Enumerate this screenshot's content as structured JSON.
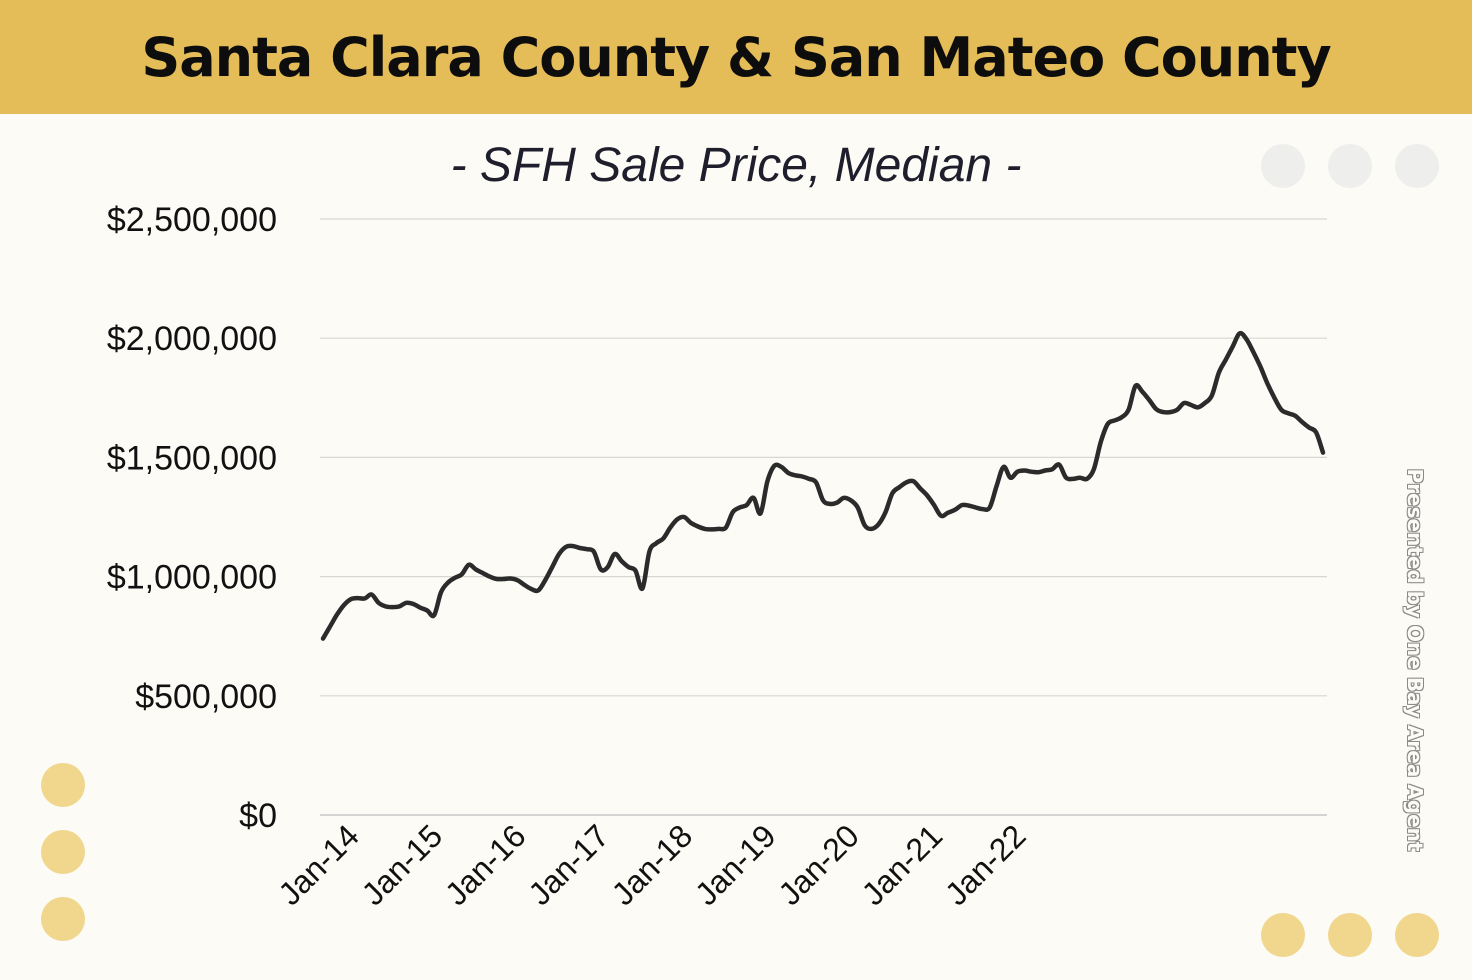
{
  "header": {
    "title": "Santa Clara County & San Mateo County"
  },
  "watermark": "Presented by One Bay Area Agent",
  "colors": {
    "header_bg": "#e4bc58",
    "line": "#2b2b2b",
    "gold_dot": "#f1d68e",
    "gray_dot": "#eeeeec"
  },
  "chart_data": {
    "type": "line",
    "title": "- SFH Sale Price, Median -",
    "xlabel": "",
    "ylabel": "",
    "ylim": [
      0,
      2500000
    ],
    "yticks": [
      0,
      500000,
      1000000,
      1500000,
      2000000,
      2500000
    ],
    "ytick_labels": [
      "$0",
      "$500,000",
      "$1,000,000",
      "$1,500,000",
      "$2,000,000",
      "$2,500,000"
    ],
    "xtick_labels": [
      "Jan-14",
      "Jan-15",
      "Jan-16",
      "Jan-17",
      "Jan-18",
      "Jan-19",
      "Jan-20",
      "Jan-21",
      "Jan-22"
    ],
    "grid": true,
    "series": [
      {
        "name": "SFH Sale Price, Median",
        "values": [
          740000,
          790000,
          840000,
          880000,
          905000,
          910000,
          908000,
          925000,
          890000,
          875000,
          872000,
          875000,
          890000,
          885000,
          870000,
          858000,
          838000,
          935000,
          975000,
          995000,
          1010000,
          1050000,
          1030000,
          1015000,
          1000000,
          990000,
          990000,
          992000,
          985000,
          965000,
          948000,
          942000,
          985000,
          1040000,
          1095000,
          1125000,
          1128000,
          1120000,
          1115000,
          1105000,
          1030000,
          1040000,
          1095000,
          1065000,
          1040000,
          1025000,
          950000,
          1105000,
          1140000,
          1160000,
          1205000,
          1240000,
          1250000,
          1225000,
          1210000,
          1200000,
          1198000,
          1200000,
          1205000,
          1270000,
          1290000,
          1300000,
          1330000,
          1265000,
          1400000,
          1465000,
          1460000,
          1435000,
          1425000,
          1420000,
          1410000,
          1395000,
          1320000,
          1305000,
          1310000,
          1330000,
          1320000,
          1290000,
          1215000,
          1200000,
          1220000,
          1270000,
          1350000,
          1375000,
          1395000,
          1400000,
          1370000,
          1340000,
          1300000,
          1255000,
          1268000,
          1280000,
          1300000,
          1298000,
          1290000,
          1283000,
          1290000,
          1380000,
          1460000,
          1415000,
          1440000,
          1445000,
          1440000,
          1438000,
          1445000,
          1450000,
          1470000,
          1415000,
          1410000,
          1415000,
          1410000,
          1450000,
          1565000,
          1640000,
          1655000,
          1668000,
          1700000,
          1800000,
          1775000,
          1740000,
          1702000,
          1690000,
          1690000,
          1700000,
          1728000,
          1720000,
          1710000,
          1728000,
          1760000,
          1855000,
          1910000,
          1965000,
          2020000,
          1995000,
          1940000,
          1880000,
          1810000,
          1750000,
          1700000,
          1685000,
          1675000,
          1648000,
          1625000,
          1605000,
          1520000
        ]
      }
    ]
  }
}
